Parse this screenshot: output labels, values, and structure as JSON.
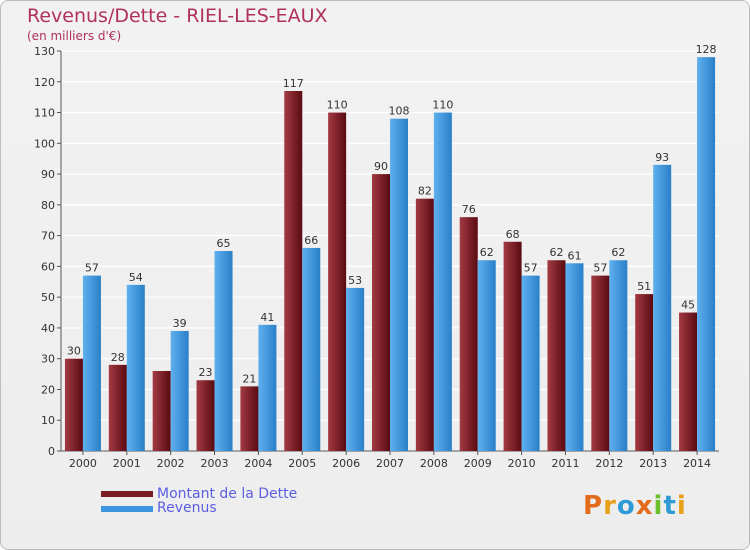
{
  "title": "Revenus/Dette - RIEL-LES-EAUX",
  "subtitle": "(en milliers d'€)",
  "logo_text": "Proxiti",
  "colors": {
    "dette": "#7a1c24",
    "revenus": "#3d97e0",
    "title": "#b0315a",
    "legend_text": "#5b5fe0",
    "logo": [
      "#e36b1c",
      "#e8a21a",
      "#2f9bd6",
      "#e36b1c",
      "#6bbf2a",
      "#2f9bd6",
      "#e8a21a"
    ]
  },
  "legend": [
    {
      "label": "Montant de la Dette",
      "color": "#7a1c24"
    },
    {
      "label": "Revenus",
      "color": "#3d97e0"
    }
  ],
  "chart_data": {
    "type": "bar",
    "title": "Revenus/Dette - RIEL-LES-EAUX",
    "subtitle": "(en milliers d'€)",
    "categories": [
      "2000",
      "2001",
      "2002",
      "2003",
      "2004",
      "2005",
      "2006",
      "2007",
      "2008",
      "2009",
      "2010",
      "2011",
      "2012",
      "2013",
      "2014"
    ],
    "series": [
      {
        "name": "Montant de la Dette",
        "values": [
          30,
          28,
          26,
          23,
          21,
          117,
          110,
          90,
          82,
          76,
          68,
          62,
          57,
          51,
          45
        ],
        "labels": [
          "30",
          "28",
          "",
          "23",
          "21",
          "117",
          "110",
          "90",
          "82",
          "76",
          "68",
          "62",
          "57",
          "51",
          "45"
        ]
      },
      {
        "name": "Revenus",
        "values": [
          57,
          54,
          39,
          65,
          41,
          66,
          53,
          108,
          110,
          62,
          57,
          61,
          62,
          93,
          128
        ],
        "labels": [
          "57",
          "54",
          "39",
          "65",
          "41",
          "66",
          "53",
          "108",
          "110",
          "62",
          "57",
          "61",
          "62",
          "93",
          "128"
        ]
      }
    ],
    "yticks": [
      0,
      10,
      20,
      30,
      40,
      50,
      60,
      70,
      80,
      90,
      100,
      110,
      120,
      130
    ],
    "ylim": [
      0,
      130
    ],
    "grid": true,
    "legend_position": "bottom-left"
  }
}
